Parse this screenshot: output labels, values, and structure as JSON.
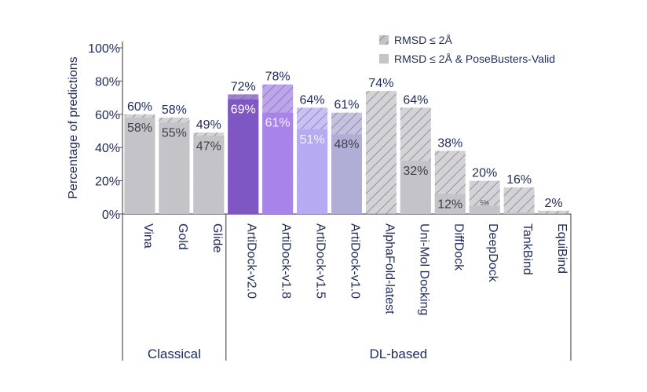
{
  "chart_data": {
    "type": "bar",
    "ylabel": "Percentage of predictions",
    "ylim": [
      0,
      100
    ],
    "yticks": [
      "0%",
      "20%",
      "40%",
      "60%",
      "80%",
      "100%"
    ],
    "legend": {
      "placement": "top-right",
      "entries": [
        {
          "label": "RMSD ≤ 2Å",
          "style": "hatched"
        },
        {
          "label": "RMSD ≤ 2Å & PoseBusters-Valid",
          "style": "solid"
        }
      ]
    },
    "groups": [
      {
        "label": "Classical",
        "count": 3
      },
      {
        "label": "DL-based",
        "count": 10
      }
    ],
    "categories": [
      "Vina",
      "Gold",
      "Glide",
      "ArtiDock-v2.0",
      "ArtiDock-v1.8",
      "ArtiDock-v1.5",
      "ArtiDock-v1.0",
      "AlphaFold-latest",
      "Uni-Mol Docking",
      "DiffDock",
      "DeepDock",
      "TankBind",
      "EquiBind"
    ],
    "series": [
      {
        "name": "RMSD ≤ 2Å",
        "values": [
          60,
          58,
          49,
          72,
          78,
          64,
          61,
          74,
          64,
          38,
          20,
          16,
          2
        ]
      },
      {
        "name": "RMSD ≤ 2Å & PoseBusters-Valid",
        "values": [
          58,
          55,
          47,
          69,
          61,
          51,
          48,
          0,
          32,
          12,
          5,
          1,
          0
        ]
      }
    ],
    "top_labels": [
      "60%",
      "58%",
      "49%",
      "72%",
      "78%",
      "64%",
      "61%",
      "74%",
      "64%",
      "38%",
      "20%",
      "16%",
      "2%"
    ],
    "inner_labels": [
      "58%",
      "55%",
      "47%",
      "69%",
      "61%",
      "51%",
      "48%",
      "",
      "32%",
      "12%",
      "5%",
      "",
      ""
    ],
    "colors": [
      "#c4c3c8",
      "#c4c3c8",
      "#c4c3c8",
      "#7e57c2",
      "#a884ea",
      "#b6aaf3",
      "#b0aed6",
      "#c4c3c8",
      "#c4c3c8",
      "#c4c3c8",
      "#c4c3c8",
      "#c4c3c8",
      "#c4c3c8"
    ],
    "hatch_color": "#8a8a92",
    "text_color": "#1f2a5a"
  }
}
